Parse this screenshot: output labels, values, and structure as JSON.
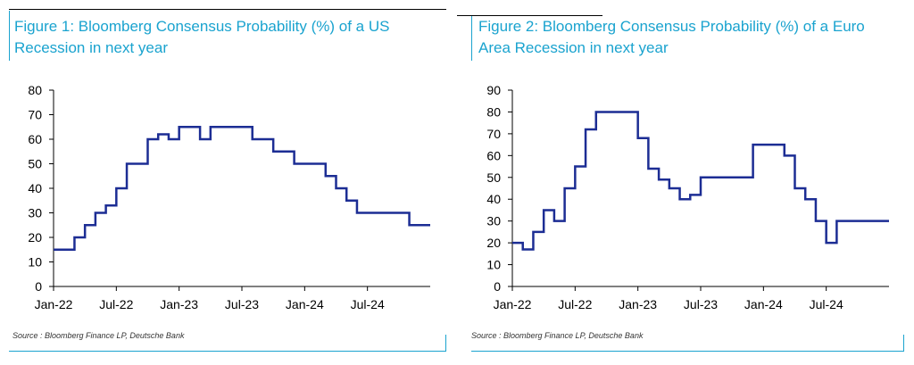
{
  "colors": {
    "title": "#1aa3cf",
    "line": "#1c2d94",
    "rule": "#1aa3cf",
    "axis": "#000000"
  },
  "panels": [
    {
      "title": "Figure 1: Bloomberg Consensus Probability (%) of a US Recession in next year",
      "source": "Source : Bloomberg Finance LP, Deutsche Bank"
    },
    {
      "title": "Figure 2: Bloomberg Consensus Probability (%) of a Euro Area Recession in next year",
      "source": "Source : Bloomberg Finance LP, Deutsche Bank"
    }
  ],
  "chart_data": [
    {
      "type": "line",
      "title": "Figure 1: Bloomberg Consensus Probability (%) of a US Recession in next year",
      "xlabel": "",
      "ylabel": "",
      "ylim": [
        0,
        80
      ],
      "yticks": [
        0,
        10,
        20,
        30,
        40,
        50,
        60,
        70,
        80
      ],
      "xlim": [
        "2022-01",
        "2025-01"
      ],
      "xticks": [
        {
          "label": "Jan-22",
          "value": "2022-01"
        },
        {
          "label": "Jul-22",
          "value": "2022-07"
        },
        {
          "label": "Jan-23",
          "value": "2023-01"
        },
        {
          "label": "Jul-23",
          "value": "2023-07"
        },
        {
          "label": "Jan-24",
          "value": "2024-01"
        },
        {
          "label": "Jul-24",
          "value": "2024-07"
        }
      ],
      "grid": false,
      "series": [
        {
          "name": "",
          "step": true,
          "x": [
            "2022-01",
            "2022-03",
            "2022-04",
            "2022-05",
            "2022-06",
            "2022-07",
            "2022-08",
            "2022-09",
            "2022-10",
            "2022-11",
            "2022-12",
            "2023-01",
            "2023-02",
            "2023-03",
            "2023-04",
            "2023-05",
            "2023-06",
            "2023-07",
            "2023-08",
            "2023-09",
            "2023-10",
            "2023-11",
            "2023-12",
            "2024-01",
            "2024-02",
            "2024-03",
            "2024-04",
            "2024-05",
            "2024-06",
            "2024-07",
            "2024-08",
            "2024-09",
            "2024-10",
            "2024-11",
            "2024-12"
          ],
          "y": [
            15,
            20,
            25,
            30,
            33,
            40,
            50,
            50,
            60,
            62,
            60,
            65,
            65,
            60,
            65,
            65,
            65,
            65,
            60,
            60,
            55,
            55,
            50,
            50,
            50,
            45,
            40,
            35,
            30,
            30,
            30,
            30,
            30,
            25,
            25
          ]
        }
      ]
    },
    {
      "type": "line",
      "title": "Figure 2: Bloomberg Consensus Probability (%) of a Euro Area Recession in next year",
      "xlabel": "",
      "ylabel": "",
      "ylim": [
        0,
        90
      ],
      "yticks": [
        0,
        10,
        20,
        30,
        40,
        50,
        60,
        70,
        80,
        90
      ],
      "xlim": [
        "2022-01",
        "2025-01"
      ],
      "xticks": [
        {
          "label": "Jan-22",
          "value": "2022-01"
        },
        {
          "label": "Jul-22",
          "value": "2022-07"
        },
        {
          "label": "Jan-23",
          "value": "2023-01"
        },
        {
          "label": "Jul-23",
          "value": "2023-07"
        },
        {
          "label": "Jan-24",
          "value": "2024-01"
        },
        {
          "label": "Jul-24",
          "value": "2024-07"
        }
      ],
      "grid": false,
      "series": [
        {
          "name": "",
          "step": true,
          "x": [
            "2022-01",
            "2022-02",
            "2022-03",
            "2022-04",
            "2022-05",
            "2022-06",
            "2022-07",
            "2022-08",
            "2022-09",
            "2022-10",
            "2022-11",
            "2022-12",
            "2023-01",
            "2023-02",
            "2023-03",
            "2023-04",
            "2023-05",
            "2023-06",
            "2023-07",
            "2023-08",
            "2023-09",
            "2023-10",
            "2023-11",
            "2023-12",
            "2024-01",
            "2024-02",
            "2024-03",
            "2024-04",
            "2024-05",
            "2024-06",
            "2024-07",
            "2024-08",
            "2024-09",
            "2024-10",
            "2024-11",
            "2024-12"
          ],
          "y": [
            20,
            17,
            25,
            35,
            30,
            45,
            55,
            72,
            80,
            80,
            80,
            80,
            68,
            54,
            49,
            45,
            40,
            42,
            50,
            50,
            50,
            50,
            50,
            65,
            65,
            65,
            60,
            45,
            40,
            30,
            20,
            30,
            30,
            30,
            30,
            30
          ]
        }
      ]
    }
  ]
}
